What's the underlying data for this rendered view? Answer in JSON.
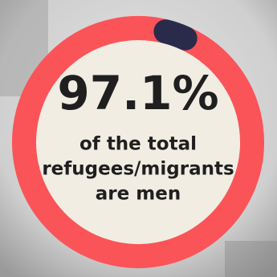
{
  "chart_data": {
    "type": "donut",
    "values": [
      97.1,
      2.9
    ],
    "value_labels": [
      "97.1%",
      null
    ],
    "colors": [
      "#fa5459",
      "#2a2b4b"
    ],
    "caption": [
      "of the total",
      "refugees/migrants",
      "are men"
    ]
  }
}
